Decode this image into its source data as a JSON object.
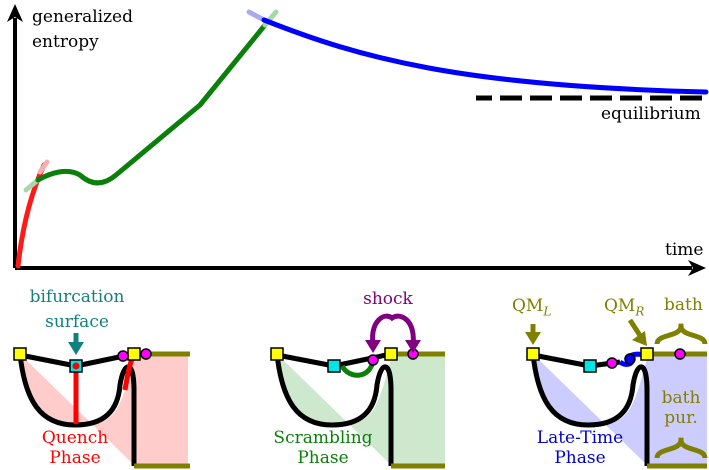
{
  "graph": {
    "y_axis_label_line1": "generalized",
    "y_axis_label_line2": "entropy",
    "x_axis_label": "time",
    "equilibrium_label": "equilibrium",
    "colors": {
      "axes": "#000000",
      "quench": "#ff1a1a",
      "scrambling": "#0a7f0a",
      "late_time": "#0000ff",
      "equilibrium_line": "#000000"
    }
  },
  "panels": {
    "quench": {
      "annotation_line1": "bifurcation",
      "annotation_line2": "surface",
      "caption_line1": "Quench",
      "caption_line2": "Phase",
      "fill_color": "#ffcccc",
      "annotation_color": "#138080",
      "caption_color": "#ff0000"
    },
    "scrambling": {
      "annotation": "shock",
      "caption_line1": "Scrambling",
      "caption_line2": "Phase",
      "fill_color": "#cde8cd",
      "annotation_color": "#800080",
      "caption_color": "#0a7f0a"
    },
    "late_time": {
      "qm_left": "QM",
      "qm_left_sub": "L",
      "qm_right": "QM",
      "qm_right_sub": "R",
      "bath_label": "bath",
      "bath_pur_line1": "bath",
      "bath_pur_line2": "pur.",
      "caption_line1": "Late-Time",
      "caption_line2": "Phase",
      "fill_color": "#ccccff",
      "annotation_color": "#808000",
      "caption_color": "#0000cc"
    }
  }
}
